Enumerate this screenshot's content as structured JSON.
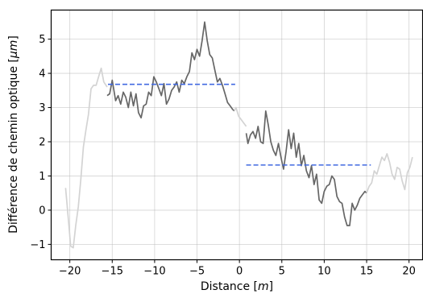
{
  "chart_data": {
    "type": "line",
    "title": "",
    "xlabel": "Distance [$m$]",
    "xlabel_parts": {
      "pre": "Distance [",
      "italic": "m",
      "post": "]"
    },
    "ylabel": "Différence de chemin optique [$\\mu m$]",
    "ylabel_parts": {
      "pre": "Différence de chemin optique [",
      "italic": "μm",
      "post": "]"
    },
    "xlim": [
      -22.2,
      21.6
    ],
    "ylim": [
      -1.45,
      5.85
    ],
    "xticks": [
      -20,
      -15,
      -10,
      -5,
      0,
      5,
      10,
      15,
      20
    ],
    "xtick_labels": [
      "−20",
      "−15",
      "−10",
      "−5",
      "0",
      "5",
      "10",
      "15",
      "20"
    ],
    "yticks": [
      -1,
      0,
      1,
      2,
      3,
      4,
      5
    ],
    "ytick_labels": [
      "−1",
      "0",
      "1",
      "2",
      "3",
      "4",
      "5"
    ],
    "grid": true,
    "legend": "none",
    "colors": {
      "outer": "#d3d3d3",
      "inner": "#666666",
      "mean": "#4169e1"
    },
    "series": [
      {
        "role": "outer",
        "x": [
          -20.5,
          -20.2,
          -19.9,
          -19.6,
          -19.3,
          -19.0,
          -18.7,
          -18.4,
          -18.1,
          -17.8,
          -17.5,
          -17.2,
          -16.9,
          -16.6,
          -16.3,
          -16.0,
          -15.6
        ],
        "y": [
          0.65,
          -0.2,
          -1.05,
          -1.1,
          -0.45,
          0.1,
          0.9,
          1.85,
          2.35,
          2.8,
          3.55,
          3.65,
          3.65,
          3.9,
          4.15,
          3.75,
          3.6
        ]
      },
      {
        "role": "inner",
        "x": [
          -15.6,
          -15.3,
          -15.0,
          -14.8,
          -14.6,
          -14.3,
          -14.0,
          -13.7,
          -13.4,
          -13.1,
          -12.8,
          -12.5,
          -12.2,
          -11.9,
          -11.6,
          -11.3,
          -11.0,
          -10.7,
          -10.4,
          -10.1,
          -9.8,
          -9.5,
          -9.2,
          -8.9,
          -8.6,
          -8.3,
          -8.0,
          -7.7,
          -7.4,
          -7.1,
          -6.8,
          -6.5,
          -6.2,
          -5.9,
          -5.6,
          -5.3,
          -5.0,
          -4.7,
          -4.4,
          -4.1,
          -3.8,
          -3.5,
          -3.2,
          -2.9,
          -2.6,
          -2.3,
          -2.0,
          -1.7,
          -1.4,
          -1.1,
          -0.8,
          -0.6
        ],
        "y": [
          3.35,
          3.4,
          3.8,
          3.5,
          3.2,
          3.35,
          3.1,
          3.45,
          3.3,
          3.0,
          3.45,
          3.05,
          3.4,
          2.85,
          2.7,
          3.05,
          3.1,
          3.45,
          3.35,
          3.9,
          3.75,
          3.55,
          3.35,
          3.7,
          3.1,
          3.25,
          3.5,
          3.6,
          3.75,
          3.45,
          3.8,
          3.7,
          3.9,
          4.05,
          4.6,
          4.4,
          4.7,
          4.5,
          4.95,
          5.5,
          4.95,
          4.55,
          4.45,
          4.1,
          3.75,
          3.85,
          3.65,
          3.4,
          3.15,
          3.05,
          2.95,
          2.9
        ]
      },
      {
        "role": "outer",
        "x": [
          -0.6,
          -0.4,
          -0.1,
          0.2,
          0.5,
          0.8
        ],
        "y": [
          2.9,
          3.0,
          2.75,
          2.65,
          2.55,
          2.45
        ]
      },
      {
        "role": "inner",
        "x": [
          0.8,
          1.0,
          1.3,
          1.6,
          1.9,
          2.2,
          2.5,
          2.8,
          3.1,
          3.4,
          3.7,
          4.0,
          4.3,
          4.6,
          4.9,
          5.2,
          5.5,
          5.8,
          6.1,
          6.4,
          6.7,
          7.0,
          7.3,
          7.6,
          7.9,
          8.2,
          8.5,
          8.8,
          9.1,
          9.4,
          9.7,
          10.0,
          10.3,
          10.6,
          10.9,
          11.2,
          11.5,
          11.8,
          12.1,
          12.4,
          12.7,
          13.0,
          13.3,
          13.6,
          13.9,
          14.2,
          14.5,
          14.8,
          15.0
        ],
        "y": [
          2.25,
          1.95,
          2.2,
          2.3,
          2.1,
          2.45,
          2.0,
          1.95,
          2.9,
          2.5,
          2.0,
          1.75,
          1.6,
          1.95,
          1.55,
          1.2,
          1.7,
          2.35,
          1.8,
          2.25,
          1.55,
          1.95,
          1.3,
          1.6,
          1.15,
          0.95,
          1.3,
          0.75,
          1.05,
          0.3,
          0.2,
          0.55,
          0.7,
          0.75,
          1.0,
          0.9,
          0.4,
          0.25,
          0.2,
          -0.2,
          -0.45,
          -0.45,
          0.2,
          0.0,
          0.15,
          0.35,
          0.45,
          0.55,
          0.5
        ]
      },
      {
        "role": "outer",
        "x": [
          15.0,
          15.3,
          15.6,
          15.9,
          16.2,
          16.5,
          16.8,
          17.1,
          17.4,
          17.7,
          18.0,
          18.3,
          18.6,
          18.9,
          19.2,
          19.5,
          19.8,
          20.1,
          20.4
        ],
        "y": [
          0.5,
          0.7,
          0.8,
          1.15,
          1.05,
          1.3,
          1.55,
          1.45,
          1.65,
          1.4,
          1.05,
          0.9,
          1.25,
          1.2,
          0.85,
          0.6,
          1.1,
          1.25,
          1.55
        ]
      }
    ],
    "reference_lines": [
      {
        "role": "mean",
        "x": [
          -15.5,
          -0.5
        ],
        "y": 3.68,
        "style": "dashed"
      },
      {
        "role": "mean",
        "x": [
          0.8,
          15.5
        ],
        "y": 1.32,
        "style": "dashed"
      }
    ]
  }
}
